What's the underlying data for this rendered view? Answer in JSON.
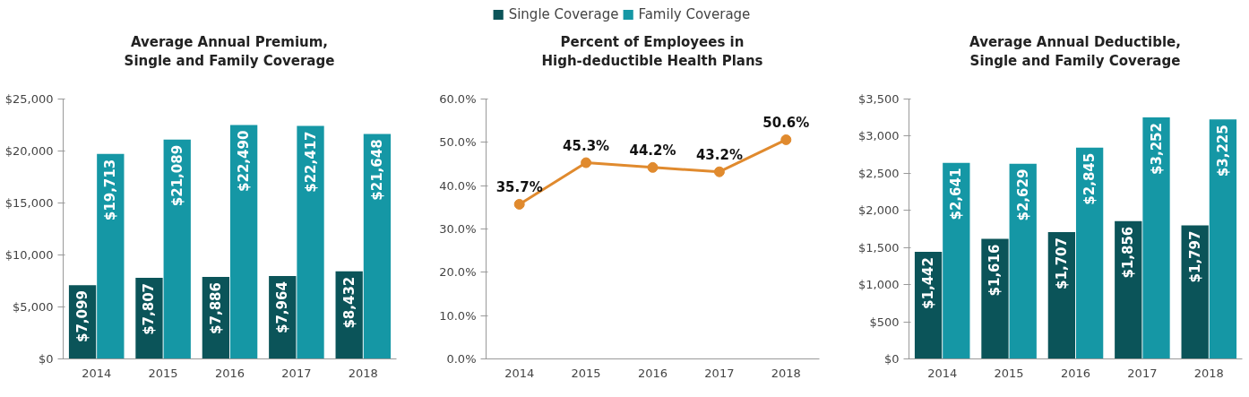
{
  "chart_data": [
    {
      "type": "bar",
      "title": "Average Annual Premium,\nSingle and Family Coverage",
      "categories": [
        "2014",
        "2015",
        "2016",
        "2017",
        "2018"
      ],
      "legend": "top",
      "grid": false,
      "series": [
        {
          "name": "Single Coverage",
          "color": "#0b5459",
          "values": [
            7099,
            7807,
            7886,
            7964,
            8432
          ],
          "value_labels": [
            "$7,099",
            "$7,807",
            "$7,886",
            "$7,964",
            "$8,432"
          ]
        },
        {
          "name": "Family Coverage",
          "color": "#1597a5",
          "values": [
            19713,
            21089,
            22490,
            22417,
            21648
          ],
          "value_labels": [
            "$19,713",
            "$21,089",
            "$22,490",
            "$22,417",
            "$21,648"
          ]
        }
      ],
      "ylim": [
        0,
        25000
      ],
      "yticks": [
        {
          "value": 0,
          "label": "$0"
        },
        {
          "value": 5000,
          "label": "$5,000"
        },
        {
          "value": 10000,
          "label": "$10,000"
        },
        {
          "value": 15000,
          "label": "$15,000"
        },
        {
          "value": 20000,
          "label": "$20,000"
        },
        {
          "value": 25000,
          "label": "$25,000"
        }
      ]
    },
    {
      "type": "line",
      "title": "Percent of Employees in\nHigh-deductible Health Plans",
      "categories": [
        "2014",
        "2015",
        "2016",
        "2017",
        "2018"
      ],
      "grid": false,
      "marker": "circle",
      "line_style": "solid",
      "series": [
        {
          "color": "#e08a2e",
          "values": [
            35.7,
            45.3,
            44.2,
            43.2,
            50.6
          ],
          "value_labels": [
            "35.7%",
            "45.3%",
            "44.2%",
            "43.2%",
            "50.6%"
          ]
        }
      ],
      "ylim": [
        0,
        60
      ],
      "yticks": [
        {
          "value": 0,
          "label": "0.0%"
        },
        {
          "value": 10,
          "label": "10.0%"
        },
        {
          "value": 20,
          "label": "20.0%"
        },
        {
          "value": 30,
          "label": "30.0%"
        },
        {
          "value": 40,
          "label": "40.0%"
        },
        {
          "value": 50,
          "label": "50.0%"
        },
        {
          "value": 60,
          "label": "60.0%"
        }
      ]
    },
    {
      "type": "bar",
      "title": "Average Annual Deductible,\nSingle and Family Coverage",
      "categories": [
        "2014",
        "2015",
        "2016",
        "2017",
        "2018"
      ],
      "grid": false,
      "series": [
        {
          "color": "#0b5459",
          "values": [
            1442,
            1616,
            1707,
            1856,
            1797
          ],
          "value_labels": [
            "$1,442",
            "$1,616",
            "$1,707",
            "$1,856",
            "$1,797"
          ]
        },
        {
          "color": "#1597a5",
          "values": [
            2641,
            2629,
            2845,
            3252,
            3225
          ],
          "value_labels": [
            "$2,641",
            "$2,629",
            "$2,845",
            "$3,252",
            "$3,225"
          ]
        }
      ],
      "ylim": [
        0,
        3500
      ],
      "yticks": [
        {
          "value": 0,
          "label": "$0"
        },
        {
          "value": 500,
          "label": "$500"
        },
        {
          "value": 1000,
          "label": "$1,000"
        },
        {
          "value": 1500,
          "label": "$1,500"
        },
        {
          "value": 2000,
          "label": "$2,000"
        },
        {
          "value": 2500,
          "label": "$2,500"
        },
        {
          "value": 3000,
          "label": "$3,000"
        },
        {
          "value": 3500,
          "label": "$3,500"
        }
      ]
    }
  ]
}
